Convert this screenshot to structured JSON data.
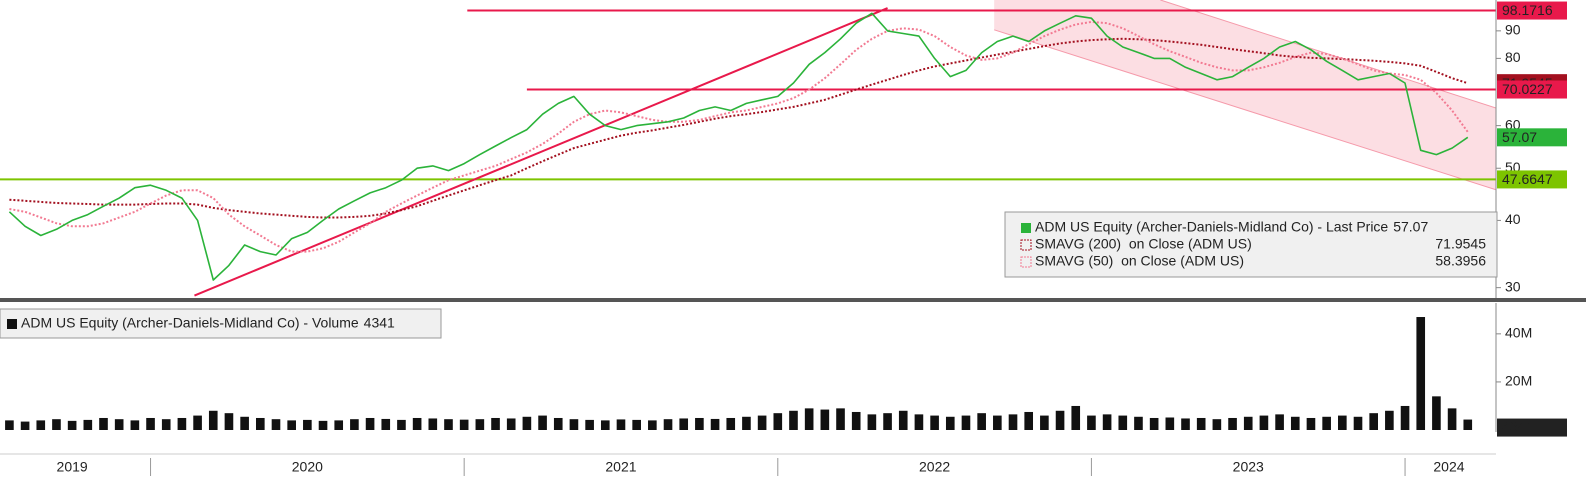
{
  "chart_data": [
    {
      "type": "line",
      "yscale": "log",
      "x": [
        2019.55,
        2019.6,
        2019.65,
        2019.7,
        2019.75,
        2019.8,
        2019.85,
        2019.9,
        2019.95,
        2020.0,
        2020.05,
        2020.1,
        2020.15,
        2020.2,
        2020.25,
        2020.3,
        2020.35,
        2020.4,
        2020.45,
        2020.5,
        2020.55,
        2020.6,
        2020.65,
        2020.7,
        2020.75,
        2020.8,
        2020.85,
        2020.9,
        2020.95,
        2021.0,
        2021.05,
        2021.1,
        2021.15,
        2021.2,
        2021.25,
        2021.3,
        2021.35,
        2021.4,
        2021.45,
        2021.5,
        2021.55,
        2021.6,
        2021.65,
        2021.7,
        2021.75,
        2021.8,
        2021.85,
        2021.9,
        2021.95,
        2022.0,
        2022.05,
        2022.1,
        2022.15,
        2022.2,
        2022.25,
        2022.3,
        2022.35,
        2022.4,
        2022.45,
        2022.5,
        2022.55,
        2022.6,
        2022.65,
        2022.7,
        2022.75,
        2022.8,
        2022.85,
        2022.9,
        2022.95,
        2023.0,
        2023.05,
        2023.1,
        2023.15,
        2023.2,
        2023.25,
        2023.3,
        2023.35,
        2023.4,
        2023.45,
        2023.5,
        2023.55,
        2023.6,
        2023.65,
        2023.7,
        2023.75,
        2023.8,
        2023.85,
        2023.9,
        2023.95,
        2024.0,
        2024.05,
        2024.1,
        2024.15,
        2024.2
      ],
      "xlim": [
        2019.52,
        2024.29
      ],
      "ylim": [
        28.7,
        102.7
      ],
      "yticks": [
        30,
        40,
        50,
        60,
        80,
        90
      ],
      "series": [
        {
          "name": "ADM US Equity (Archer-Daniels-Midland Co) - Last Price",
          "color": "#2bb33a",
          "style": "solid",
          "values": [
            41.5,
            39,
            37.5,
            38.5,
            40,
            41,
            42.5,
            44,
            46,
            46.5,
            45.5,
            44,
            40,
            31,
            33,
            36,
            35,
            34.5,
            37,
            38,
            40,
            42,
            43.5,
            45,
            46,
            47.5,
            50,
            50.5,
            49.5,
            51,
            53,
            55,
            57,
            59,
            63,
            66,
            68,
            63,
            60,
            59,
            60,
            60.5,
            61,
            62,
            64,
            65,
            64,
            66,
            67,
            68,
            72,
            78,
            82,
            87,
            93,
            97,
            90,
            89,
            88,
            80,
            74,
            76,
            82,
            86,
            88,
            86,
            90,
            93,
            96,
            95,
            88,
            84,
            82,
            80,
            80,
            77,
            75,
            73,
            74,
            77,
            80,
            84,
            86,
            83,
            79,
            76,
            73,
            74,
            75,
            72,
            54,
            53,
            54.5,
            57.07
          ]
        },
        {
          "name": "SMAVG (200)  on Close (ADM US)",
          "color": "#a3101f",
          "style": "dotted",
          "values": [
            43.7,
            43.5,
            43.3,
            43.1,
            43,
            42.9,
            42.8,
            42.8,
            42.8,
            42.9,
            43,
            43,
            42.8,
            42.2,
            41.8,
            41.5,
            41.2,
            41,
            40.8,
            40.6,
            40.5,
            40.5,
            40.6,
            40.8,
            41.2,
            41.8,
            42.5,
            43.5,
            44.5,
            45.5,
            46.5,
            47.5,
            48.5,
            50,
            51.5,
            53,
            54.5,
            55.5,
            56.5,
            57.5,
            58.2,
            58.8,
            59.5,
            60.2,
            61,
            61.8,
            62.5,
            63,
            63.6,
            64.3,
            65,
            66,
            67,
            68.5,
            70,
            71.5,
            73,
            74.5,
            76,
            77.3,
            78.3,
            79.3,
            80.3,
            81.3,
            82.3,
            83.3,
            84.3,
            85.3,
            86,
            86.5,
            86.8,
            87,
            86.8,
            86.5,
            86,
            85.4,
            84.8,
            84,
            83.2,
            82.5,
            81.8,
            81,
            80.5,
            80.2,
            80,
            79.8,
            79.5,
            79.2,
            78.8,
            78.3,
            77.5,
            75.5,
            73.5,
            71.9545
          ]
        },
        {
          "name": "SMAVG (50)  on Close (ADM US)",
          "color": "#f27a92",
          "style": "dotted",
          "values": [
            42,
            41.5,
            40.5,
            39.5,
            39,
            39,
            39.5,
            40.5,
            41.5,
            43,
            44.5,
            45.5,
            45.5,
            44,
            41,
            39,
            37.5,
            36,
            35,
            35,
            35.5,
            36.5,
            38,
            39.5,
            41.5,
            43,
            44.5,
            46,
            47.5,
            48.5,
            49.5,
            50.5,
            52,
            53.5,
            55.5,
            58,
            61,
            63,
            64,
            63.5,
            62.5,
            61.5,
            61,
            61,
            61.5,
            62.5,
            63.5,
            64,
            65,
            66,
            67.5,
            70,
            73.5,
            78,
            83,
            87,
            90,
            91,
            90.5,
            88,
            84,
            81,
            79.5,
            80,
            82,
            85,
            88,
            90.5,
            92.5,
            93.5,
            93,
            91,
            88,
            85,
            82.5,
            80.5,
            78.5,
            77,
            76,
            76,
            77,
            78.5,
            80.5,
            82,
            81.5,
            80,
            78,
            76,
            75,
            74.5,
            73,
            69,
            64,
            58.3956
          ]
        }
      ],
      "hlines": [
        {
          "value": 98.1716,
          "color": "#e8194b",
          "from": 2021.01
        },
        {
          "value": 70.0227,
          "color": "#e8194b",
          "from": 2021.2
        },
        {
          "value": 47.6647,
          "color": "#7dc400",
          "from": 2019.52
        }
      ],
      "trendline": {
        "color": "#e8194b",
        "x": [
          2020.14,
          2022.35
        ],
        "y": [
          29,
          99.2
        ]
      },
      "channel": {
        "color": "#fbd3da",
        "edge": "#f59aaa",
        "upper": {
          "x": [
            2023.22,
            2024.29
          ],
          "y": [
            102.7,
            64.7
          ]
        },
        "lower": {
          "x": [
            2022.69,
            2024.29
          ],
          "y": [
            90.4,
            45.6
          ]
        }
      },
      "legend": "bottom-right"
    },
    {
      "type": "bar",
      "ylim": [
        0,
        52
      ],
      "yticks": [
        {
          "value": 20,
          "label": "20M"
        },
        {
          "value": 40,
          "label": "40M"
        }
      ],
      "xticks": [
        {
          "value": 2019.75,
          "label": "2019"
        },
        {
          "value": 2020.5,
          "label": "2020"
        },
        {
          "value": 2021.5,
          "label": "2021"
        },
        {
          "value": 2022.5,
          "label": "2022"
        },
        {
          "value": 2023.5,
          "label": "2023"
        },
        {
          "value": 2024.14,
          "label": "2024"
        }
      ],
      "xdividers": [
        2020,
        2021,
        2022,
        2023,
        2024
      ],
      "series": [
        {
          "name": "ADM US Equity (Archer-Daniels-Midland Co) - Volume",
          "color": "#111111",
          "values": [
            4,
            3.5,
            4,
            4.5,
            3.8,
            4.2,
            5,
            4.5,
            4,
            5,
            4.5,
            5,
            6,
            8,
            7,
            5.5,
            5,
            4.5,
            4,
            4.2,
            3.8,
            4,
            4.5,
            5,
            4.6,
            4.2,
            5,
            4.8,
            4.5,
            4.3,
            4.5,
            5,
            4.8,
            5.5,
            6,
            5,
            4.5,
            4.2,
            4,
            4.4,
            4.2,
            4,
            4.5,
            4.8,
            5,
            4.6,
            5,
            5.5,
            6,
            7,
            8,
            9,
            8.5,
            9,
            7.5,
            6.5,
            7,
            8,
            6.5,
            6,
            5.5,
            6,
            7,
            6,
            6.5,
            7.5,
            6,
            8,
            10,
            6,
            6.5,
            6,
            5.5,
            5,
            5.2,
            4.8,
            5,
            4.5,
            5,
            5.5,
            6,
            6.5,
            5.5,
            5,
            5.5,
            6,
            5.5,
            7,
            8,
            10,
            47,
            14,
            9,
            4.341
          ],
          "value_labels": [
            null,
            null,
            null,
            null,
            null,
            null,
            null,
            null,
            null,
            null,
            null,
            null,
            null,
            null,
            null,
            null,
            null,
            null,
            null,
            null,
            null,
            null,
            null,
            null,
            null,
            null,
            null,
            null,
            null,
            null,
            null,
            null,
            null,
            null,
            null,
            null,
            null,
            null,
            null,
            null,
            null,
            null,
            null,
            null,
            null,
            null,
            null,
            null,
            null,
            null,
            null,
            null,
            null,
            null,
            null,
            null,
            null,
            null,
            null,
            null,
            null,
            null,
            null,
            null,
            null,
            null,
            null,
            null,
            null,
            null,
            null,
            null,
            null,
            null,
            null,
            null,
            null,
            null,
            null,
            null,
            null,
            null,
            null,
            null,
            null,
            null,
            null,
            null,
            null,
            null,
            null,
            null,
            null,
            "4341"
          ]
        }
      ],
      "legend": "top-left"
    }
  ]
}
